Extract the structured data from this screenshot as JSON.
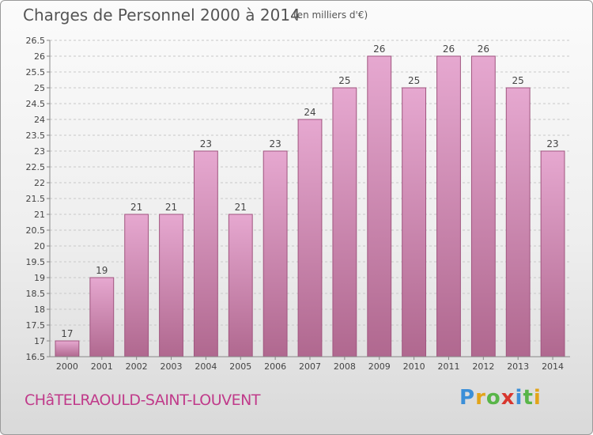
{
  "title": "Charges de Personnel 2000 à 2014",
  "unit_note": "(en milliers d'€)",
  "place_name": "CHâTELRAOULD-SAINT-LOUVENT",
  "logo": {
    "letters": [
      "P",
      "r",
      "o",
      "x",
      "i",
      "t",
      "i"
    ]
  },
  "colors": {
    "bar_top": "#e6a8d0",
    "bar_bottom": "#b0688f",
    "bar_border": "#a0557f",
    "place": "#c03a8a"
  },
  "chart_data": {
    "type": "bar",
    "title": "Charges de Personnel 2000 à 2014",
    "categories": [
      "2000",
      "2001",
      "2002",
      "2003",
      "2004",
      "2005",
      "2006",
      "2007",
      "2008",
      "2009",
      "2010",
      "2011",
      "2012",
      "2013",
      "2014"
    ],
    "values": [
      17,
      19,
      21,
      21,
      23,
      21,
      23,
      24,
      25,
      26,
      25,
      26,
      26,
      25,
      23
    ],
    "ylim": [
      16.5,
      26.5
    ],
    "yticks": [
      "16.5",
      "17",
      "17.5",
      "18",
      "18.5",
      "19",
      "19.5",
      "20",
      "20.5",
      "21",
      "21.5",
      "22",
      "22.5",
      "23",
      "23.5",
      "24",
      "24.5",
      "25",
      "25.5",
      "26",
      "26.5"
    ],
    "grid": true
  }
}
